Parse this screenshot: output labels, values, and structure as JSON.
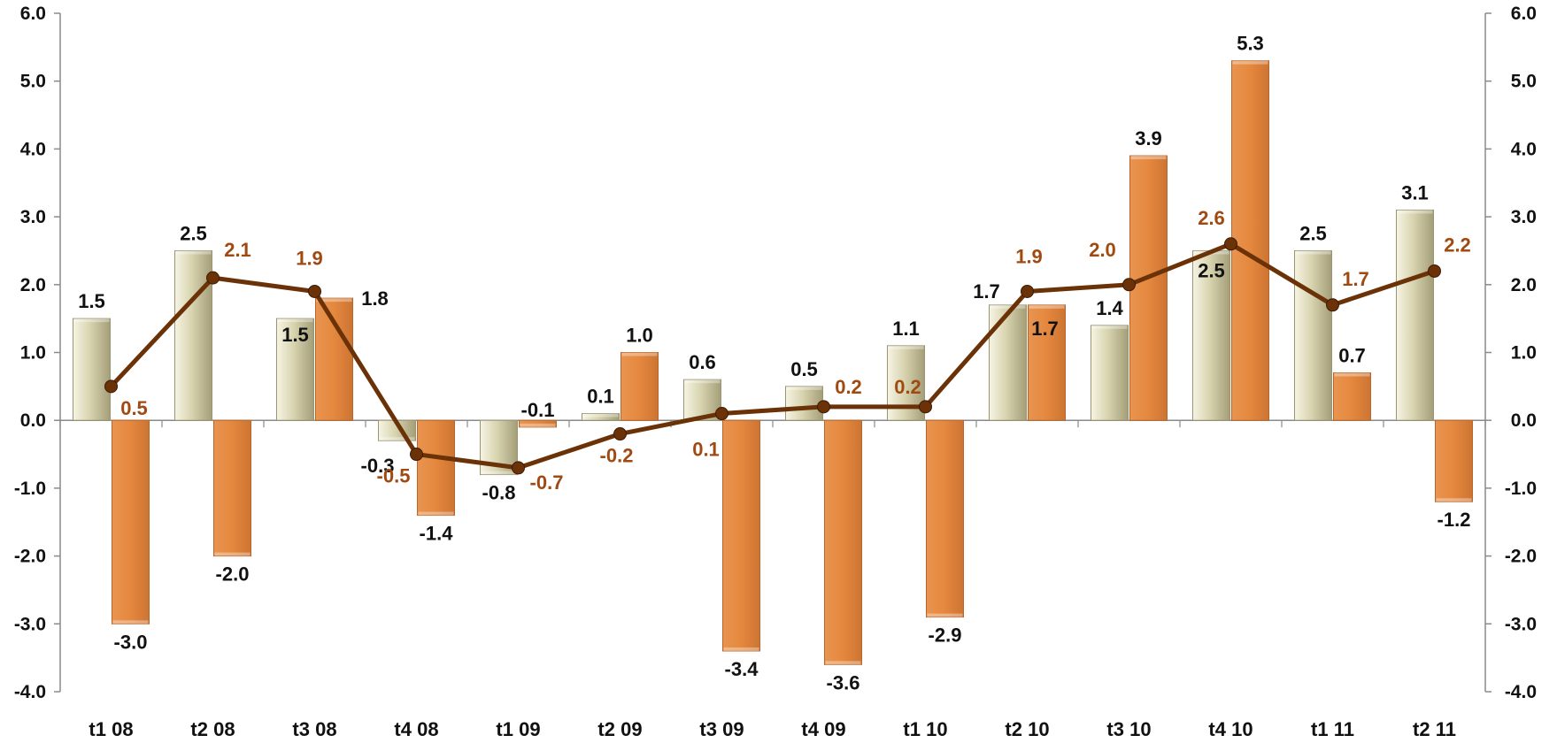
{
  "chart_data": {
    "type": "bar",
    "categories": [
      "t1 08",
      "t2 08",
      "t3 08",
      "t4 08",
      "t1 09",
      "t2 09",
      "t3 09",
      "t4 09",
      "t1 10",
      "t2 10",
      "t3 10",
      "t4 10",
      "t1 11",
      "t2 11"
    ],
    "series": [
      {
        "type": "bar",
        "values": [
          1.5,
          2.5,
          1.5,
          -0.3,
          -0.8,
          0.1,
          0.6,
          0.5,
          1.1,
          1.7,
          1.4,
          2.5,
          2.5,
          3.1
        ],
        "labels": [
          "1.5",
          "2.5",
          "1.5",
          "-0.3",
          "-0.8",
          "0.1",
          "0.6",
          "0.5",
          "1.1",
          "1.7",
          "1.4",
          "2.5",
          "2.5",
          "3.1"
        ],
        "color": "#e0ddc0",
        "label_color": "#111111"
      },
      {
        "type": "bar",
        "values": [
          -3.0,
          -2.0,
          1.8,
          -1.4,
          -0.1,
          1.0,
          -3.4,
          -3.6,
          -2.9,
          1.7,
          3.9,
          5.3,
          0.7,
          -1.2
        ],
        "labels": [
          "-3.0",
          "-2.0",
          "1.8",
          "-1.4",
          "-0.1",
          "1.0",
          "-3.4",
          "-3.6",
          "-2.9",
          "1.7",
          "3.9",
          "5.3",
          "0.7",
          "-1.2"
        ],
        "color": "#e8904a",
        "label_color": "#111111"
      },
      {
        "type": "line",
        "values": [
          0.5,
          2.1,
          1.9,
          -0.5,
          -0.7,
          -0.2,
          0.1,
          0.2,
          0.2,
          1.9,
          2.0,
          2.6,
          1.7,
          2.2
        ],
        "labels": [
          "0.5",
          "2.1",
          "1.9",
          "-0.5",
          "-0.7",
          "-0.2",
          "0.1",
          "0.2",
          "0.2",
          "1.9",
          "2.0",
          "2.6",
          "1.7",
          "2.2"
        ],
        "color": "#6b3208",
        "label_color": "#a04a12"
      }
    ],
    "y_left": {
      "range": [
        -4.0,
        6.0
      ],
      "ticks": [
        "-4.0",
        "-3.0",
        "-2.0",
        "-1.0",
        "0.0",
        "1.0",
        "2.0",
        "3.0",
        "4.0",
        "5.0",
        "6.0"
      ]
    },
    "y_right": {
      "range": [
        -4.0,
        6.0
      ],
      "ticks": [
        "-4.0",
        "-3.0",
        "-2.0",
        "-1.0",
        "0.0",
        "1.0",
        "2.0",
        "3.0",
        "4.0",
        "5.0",
        "6.0"
      ]
    },
    "title": "",
    "xlabel": "",
    "ylabel": "",
    "grid": false,
    "legend": "none"
  }
}
